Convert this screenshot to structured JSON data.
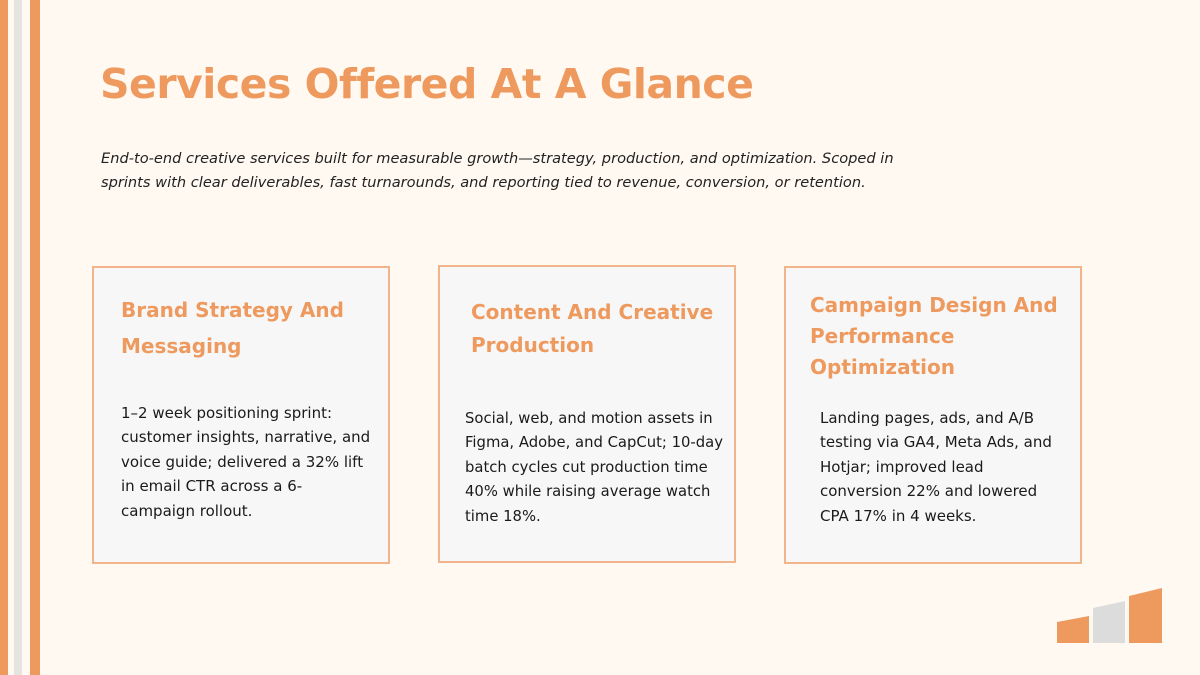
{
  "title": "Services Offered At A Glance",
  "intro": "End-to-end creative services built for measurable growth—strategy, production, and optimization. Scoped in sprints with clear deliverables, fast turnarounds, and reporting tied to revenue, conversion, or retention.",
  "cards": [
    {
      "title": "Brand Strategy And Messaging",
      "body": "1–2 week positioning sprint: customer insights, narrative, and voice guide; delivered a 32% lift in email CTR across a 6-campaign rollout."
    },
    {
      "title": "Content And Creative Production",
      "body": "Social, web, and motion assets in Figma, Adobe, and CapCut; 10-day batch cycles cut production time 40% while raising average watch time 18%."
    },
    {
      "title": "Campaign Design And Performance Optimization",
      "body": "Landing pages, ads, and A/B testing via GA4, Meta Ads, and Hotjar; improved lead conversion 22% and lowered CPA 17% in 4 weeks."
    }
  ],
  "colors": {
    "accent": "#ee9a5f",
    "background": "#fff9f1",
    "card_background": "#f7f7f7",
    "card_border": "#f2b48a",
    "stripe_gray": "#e6e4e1"
  },
  "decor": {
    "logo": "ascending-bars-icon"
  }
}
